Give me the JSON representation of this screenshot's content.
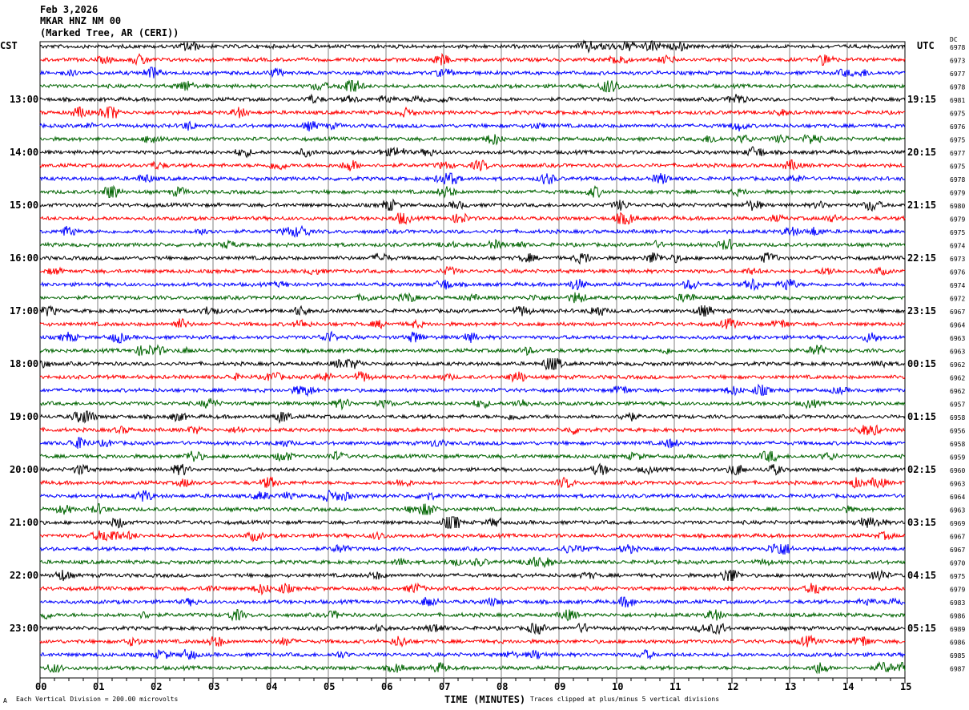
{
  "header": {
    "date": "Feb 3,2026",
    "station": "MKAR HNZ NM 00",
    "location": "(Marked Tree, AR (CERI))"
  },
  "chart_data": {
    "type": "line",
    "subtype": "helicorder",
    "left_axis_title": "CST",
    "right_axis_title": "UTC",
    "dc_title": "DC",
    "xlabel": "TIME (MINUTES)",
    "xlim": [
      0,
      15
    ],
    "x_ticks": [
      "00",
      "01",
      "02",
      "03",
      "04",
      "05",
      "06",
      "07",
      "08",
      "09",
      "10",
      "11",
      "12",
      "13",
      "14",
      "15"
    ],
    "grid": true,
    "traces_per_hour": 4,
    "trace_colors": [
      "#000000",
      "#ff0000",
      "#0000ff",
      "#006400"
    ],
    "grid_color": "#808080",
    "cst_labels": [
      "13:00",
      "14:00",
      "15:00",
      "16:00",
      "17:00",
      "18:00",
      "19:00",
      "20:00",
      "21:00",
      "22:00",
      "23:00"
    ],
    "utc_labels": [
      "19:15",
      "20:15",
      "21:15",
      "22:15",
      "23:15",
      "00:15",
      "01:15",
      "02:15",
      "03:15",
      "04:15",
      "05:15"
    ],
    "dc_values": [
      "6978",
      "6973",
      "6977",
      "6978",
      "6981",
      "6975",
      "6976",
      "6975",
      "6977",
      "6975",
      "6978",
      "6979",
      "6980",
      "6979",
      "6975",
      "6974",
      "6973",
      "6976",
      "6974",
      "6972",
      "6967",
      "6964",
      "6963",
      "6963",
      "6962",
      "6962",
      "6962",
      "6957",
      "6958",
      "6956",
      "6958",
      "6959",
      "6960",
      "6963",
      "6964",
      "6963",
      "6969",
      "6967",
      "6967",
      "6970",
      "6975",
      "6979",
      "6983",
      "6986",
      "6989",
      "6986",
      "6985",
      "6987"
    ]
  },
  "footer": {
    "scale_note": "Each Vertical Division =  200.00 microvolts",
    "clip_note": "Traces clipped at plus/minus 5 vertical divisions",
    "corner_mark": "A"
  }
}
